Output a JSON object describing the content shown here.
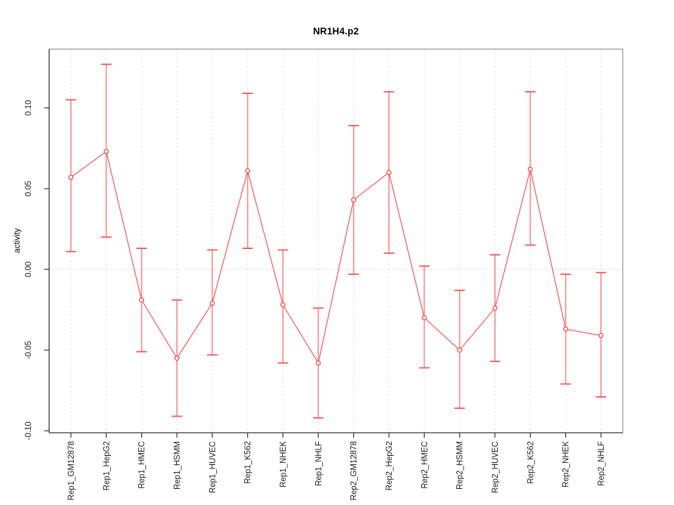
{
  "title": "NR1H4.p2",
  "colors": {
    "series": "#f45454",
    "point_stroke": "#f43b3b",
    "point_fill": "#ffffff",
    "error_stem": "#f69090",
    "error_cap": "#f45454",
    "box": "#8f8f8f",
    "axis": "#3f3f3f",
    "gridline": "#e2e2e2",
    "zero_line": "#c4c4c4",
    "text": "#1a1a1a"
  },
  "chart_data": {
    "type": "line",
    "title": "NR1H4.p2",
    "xlabel": "",
    "ylabel": "activity",
    "legend": "none",
    "grid": "vertical dashed gridlines per category; dotted horizontal line at 0",
    "marker": "open-circle with error bars",
    "categories": [
      "Rep1_GM12878",
      "Rep1_HepG2",
      "Rep1_HMEC",
      "Rep1_HSMM",
      "Rep1_HUVEC",
      "Rep1_K562",
      "Rep1_NHEK",
      "Rep1_NHLF",
      "Rep2_GM12878",
      "Rep2_HepG2",
      "Rep2_HMEC",
      "Rep2_HSMM",
      "Rep2_HUVEC",
      "Rep2_K562",
      "Rep2_NHEK",
      "Rep2_NHLF"
    ],
    "series": [
      {
        "name": "activity",
        "values": [
          0.057,
          0.073,
          -0.019,
          -0.055,
          -0.021,
          0.061,
          -0.022,
          -0.058,
          0.043,
          0.06,
          -0.03,
          -0.05,
          -0.024,
          0.062,
          -0.037,
          -0.041
        ],
        "error_low": [
          0.011,
          0.02,
          -0.051,
          -0.091,
          -0.053,
          0.013,
          -0.058,
          -0.092,
          -0.003,
          0.01,
          -0.061,
          -0.086,
          -0.057,
          0.015,
          -0.071,
          -0.079
        ],
        "error_high": [
          0.105,
          0.127,
          0.013,
          -0.019,
          0.012,
          0.109,
          0.012,
          -0.024,
          0.089,
          0.11,
          0.002,
          -0.013,
          0.009,
          0.11,
          -0.003,
          -0.002
        ]
      }
    ],
    "y_ticks": [
      -0.1,
      -0.05,
      0.0,
      0.05,
      0.1
    ],
    "y_tick_labels": [
      "-0.10",
      "-0.05",
      "0.00",
      "0.05",
      "0.10"
    ],
    "ylim": [
      -0.1012,
      0.1364
    ]
  }
}
